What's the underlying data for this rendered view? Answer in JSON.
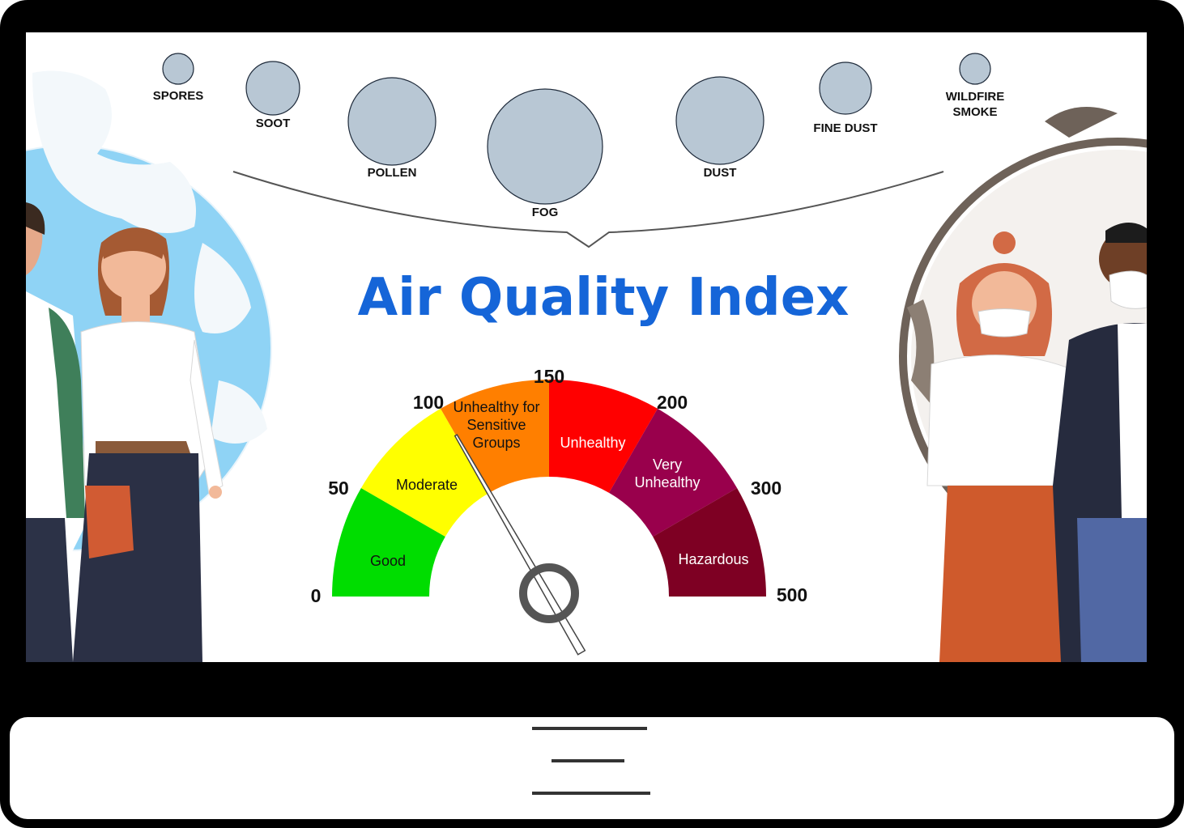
{
  "title": "Air Quality Index",
  "particles": [
    {
      "label_lines": [
        "SPORES"
      ],
      "icon": "particle-circle"
    },
    {
      "label_lines": [
        "SOOT"
      ],
      "icon": "particle-circle"
    },
    {
      "label_lines": [
        "POLLEN"
      ],
      "icon": "particle-circle"
    },
    {
      "label_lines": [
        "FOG"
      ],
      "icon": "particle-circle"
    },
    {
      "label_lines": [
        "DUST"
      ],
      "icon": "particle-circle"
    },
    {
      "label_lines": [
        "FINE DUST"
      ],
      "icon": "particle-circle"
    },
    {
      "label_lines": [
        "WILDFIRE",
        "SMOKE"
      ],
      "icon": "particle-circle"
    }
  ],
  "gauge": {
    "ticks": [
      "0",
      "50",
      "100",
      "150",
      "200",
      "300",
      "500"
    ],
    "bands": [
      {
        "label_lines": [
          "Good"
        ],
        "color": "#00dd00",
        "text_color": "#111111"
      },
      {
        "label_lines": [
          "Moderate"
        ],
        "color": "#ffff00",
        "text_color": "#111111"
      },
      {
        "label_lines": [
          "Unhealthy for",
          "Sensitive",
          "Groups"
        ],
        "color": "#ff7f00",
        "text_color": "#111111"
      },
      {
        "label_lines": [
          "Unhealthy"
        ],
        "color": "#ff0000",
        "text_color": "#ffffff"
      },
      {
        "label_lines": [
          "Very",
          "Unhealthy"
        ],
        "color": "#99004c",
        "text_color": "#ffffff"
      },
      {
        "label_lines": [
          "Hazardous"
        ],
        "color": "#7e0023",
        "text_color": "#ffffff"
      }
    ],
    "needle_value": 100
  },
  "colors": {
    "frame": "#000000",
    "particle_fill": "#b8c7d4",
    "particle_stroke": "#1e2a3a",
    "title": "#1565d8",
    "globe": "#8fd3f5",
    "smog": "#6e6259"
  },
  "people": {
    "left": "people-illustration-unmasked",
    "right": "people-illustration-masked"
  },
  "stand_icon": "menu-lines-icon"
}
